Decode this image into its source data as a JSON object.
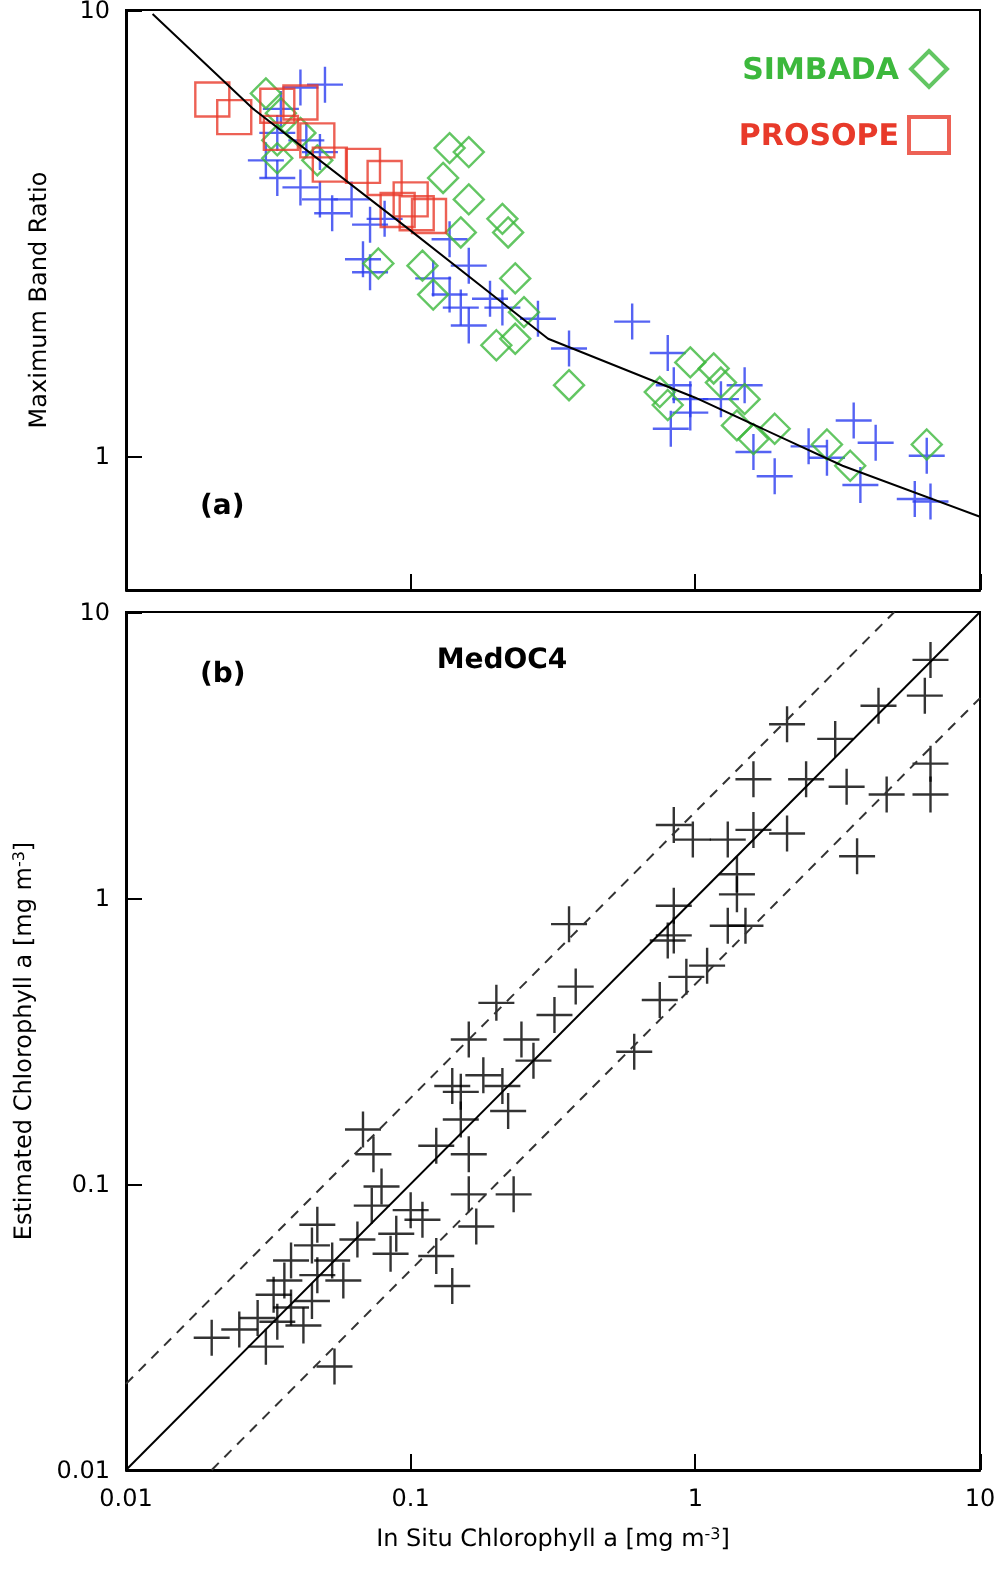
{
  "chart_data": [
    {
      "type": "scatter",
      "ylabel": "Maximum Band Ratio",
      "annotations": [
        "(a)"
      ],
      "log": "xy",
      "legend": "top right",
      "tick_labels": "y",
      "xlim": [
        0.01,
        10
      ],
      "xticks": [
        {
          "value": 0.01,
          "label": null
        },
        {
          "value": 0.1,
          "label": null
        },
        {
          "value": 1,
          "label": null
        },
        {
          "value": 10,
          "label": null
        }
      ],
      "ylim": [
        0.5,
        10
      ],
      "yticks": [
        1,
        10
      ],
      "series": [
        {
          "color": "#2a3cf0",
          "marker": "cross",
          "x": [
            0.05,
            0.035,
            0.034,
            0.043,
            0.048,
            0.034,
            0.041,
            0.048,
            0.053,
            0.062,
            0.072,
            0.081,
            0.068,
            0.072,
            0.12,
            0.137,
            0.16,
            0.15,
            0.19,
            0.21,
            0.16,
            0.28,
            0.36,
            0.6,
            0.8,
            0.84,
            0.82,
            0.96,
            0.96,
            1.23,
            1.49,
            1.6,
            1.9,
            2.5,
            2.9,
            3.6,
            4.3,
            3.8,
            5.9,
            6.7,
            6.5,
            0.137,
            0.041,
            0.031
          ],
          "values": [
            6.8,
            6.0,
            5.3,
            5.1,
            4.8,
            4.2,
            4.0,
            3.76,
            3.5,
            3.76,
            3.3,
            3.4,
            2.76,
            2.58,
            2.5,
            2.3,
            2.67,
            2.15,
            2.25,
            2.15,
            1.96,
            2.03,
            1.74,
            2.0,
            1.7,
            1.44,
            1.15,
            1.25,
            1.34,
            1.34,
            1.44,
            1.02,
            0.9,
            1.05,
            0.99,
            1.2,
            1.07,
            0.86,
            0.8,
            0.79,
            1.0,
            3.06,
            6.7,
            4.6
          ]
        },
        {
          "name": "SIMBADA",
          "color": "#3cb83c",
          "marker": "diamond",
          "x": [
            0.031,
            0.035,
            0.034,
            0.034,
            0.041,
            0.047,
            0.137,
            0.16,
            0.13,
            0.16,
            0.15,
            0.21,
            0.22,
            0.077,
            0.11,
            0.233,
            0.12,
            0.25,
            0.2,
            0.233,
            0.36,
            0.75,
            0.96,
            1.16,
            1.23,
            1.49,
            0.8,
            1.4,
            1.6,
            1.9,
            2.9,
            3.5,
            6.5
          ],
          "values": [
            6.5,
            5.87,
            5.1,
            4.65,
            5.3,
            4.6,
            4.9,
            4.8,
            4.2,
            3.76,
            3.17,
            3.4,
            3.17,
            2.7,
            2.67,
            2.5,
            2.3,
            2.1,
            1.77,
            1.83,
            1.44,
            1.39,
            1.62,
            1.57,
            1.46,
            1.34,
            1.3,
            1.17,
            1.09,
            1.15,
            1.06,
            0.95,
            1.06
          ]
        },
        {
          "name": "PROSOPE",
          "color": "#e83a2a",
          "marker": "square",
          "x": [
            0.0201,
            0.024,
            0.034,
            0.041,
            0.035,
            0.047,
            0.052,
            0.068,
            0.081,
            0.09,
            0.105,
            0.116,
            0.1
          ],
          "values": [
            6.3,
            5.75,
            6.1,
            6.2,
            5.3,
            5.1,
            4.5,
            4.47,
            4.2,
            3.56,
            3.5,
            3.45,
            3.76
          ]
        },
        {
          "type": "line",
          "color": "#000000",
          "line_style": "solid",
          "marker": "none",
          "x": [
            0.0124,
            0.028,
            0.1,
            0.304,
            1,
            3.29,
            10
          ],
          "values": [
            9.8,
            6.0,
            3.2,
            1.83,
            1.35,
            0.95,
            0.73
          ]
        }
      ]
    },
    {
      "type": "scatter",
      "title": "MedOC4",
      "annotations": [
        "(b)"
      ],
      "xlabel": "In Situ Chlorophyll a [mg m$^{-3}$]",
      "ylabel": "Estimated Chlorophyll a [mg m$^{-3}$]",
      "log": "xy",
      "xlim": [
        0.01,
        10
      ],
      "xticks": [
        0.01,
        0.1,
        1,
        10
      ],
      "ylim": [
        0.01,
        10
      ],
      "yticks": [
        0.01,
        0.1,
        1,
        10
      ],
      "series": [
        {
          "color": "#000000",
          "marker": "cross",
          "x": [
            6.7,
            6.4,
            4.4,
            2.1,
            3.1,
            2.45,
            1.6,
            3.4,
            4.7,
            6.7,
            6.7,
            3.7,
            0.84,
            0.98,
            1.3,
            1.6,
            2.1,
            1.4,
            1.4,
            0.84,
            0.84,
            0.8,
            1.3,
            1.5,
            0.93,
            1.1,
            0.75,
            0.61,
            0.36,
            0.38,
            0.32,
            0.2,
            0.16,
            0.245,
            0.27,
            0.14,
            0.18,
            0.15,
            0.21,
            0.068,
            0.074,
            0.15,
            0.123,
            0.16,
            0.22,
            0.079,
            0.073,
            0.1,
            0.11,
            0.16,
            0.23,
            0.17,
            0.123,
            0.14,
            0.047,
            0.045,
            0.038,
            0.036,
            0.033,
            0.038,
            0.042,
            0.034,
            0.029,
            0.02,
            0.025,
            0.031,
            0.054,
            0.053,
            0.058,
            0.065,
            0.089,
            0.085,
            0.045,
            0.047
          ],
          "values": [
            6.8,
            5.1,
            4.7,
            4.05,
            3.6,
            2.6,
            2.6,
            2.45,
            2.3,
            2.95,
            2.3,
            1.4,
            1.8,
            1.6,
            1.6,
            1.73,
            1.68,
            1.21,
            1.03,
            0.94,
            0.74,
            0.71,
            0.8,
            0.8,
            0.53,
            0.58,
            0.44,
            0.29,
            0.81,
            0.49,
            0.39,
            0.43,
            0.32,
            0.32,
            0.27,
            0.22,
            0.24,
            0.21,
            0.22,
            0.155,
            0.127,
            0.168,
            0.136,
            0.127,
            0.18,
            0.098,
            0.084,
            0.081,
            0.075,
            0.092,
            0.092,
            0.071,
            0.056,
            0.044,
            0.072,
            0.061,
            0.054,
            0.046,
            0.041,
            0.037,
            0.032,
            0.033,
            0.034,
            0.029,
            0.031,
            0.027,
            0.023,
            0.054,
            0.046,
            0.064,
            0.067,
            0.057,
            0.039,
            0.048
          ]
        },
        {
          "type": "line",
          "color": "#000000",
          "line_style": "solid",
          "marker": "none",
          "x": [
            0.01,
            10
          ],
          "values": [
            0.01,
            10
          ]
        },
        {
          "type": "line",
          "color": "#333333",
          "line_style": "dashed",
          "marker": "none",
          "x": [
            0.01,
            5
          ],
          "values": [
            0.02,
            10
          ]
        },
        {
          "type": "line",
          "color": "#333333",
          "line_style": "dashed",
          "marker": "none",
          "x": [
            0.02,
            10
          ],
          "values": [
            0.01,
            5
          ]
        }
      ]
    }
  ]
}
